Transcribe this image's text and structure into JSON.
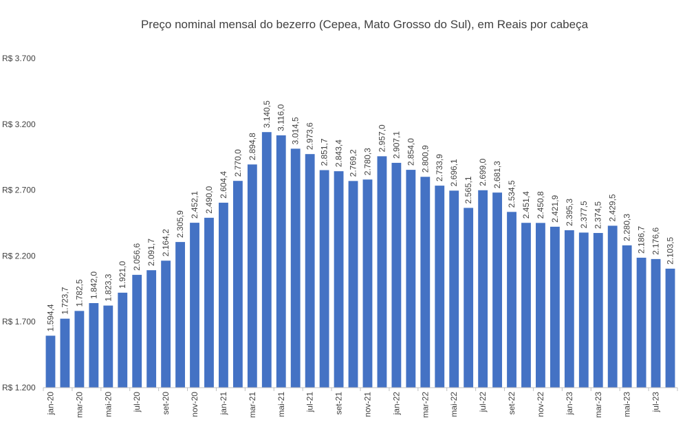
{
  "chart_data": {
    "type": "bar",
    "title": "Preço nominal mensal do bezerro (Cepea, Mato Grosso do Sul), em Reais por cabeça",
    "xlabel": "",
    "ylabel": "",
    "ylim": [
      1200,
      3700
    ],
    "yticks": [
      1200,
      1700,
      2200,
      2700,
      3200,
      3700
    ],
    "ytick_labels": [
      "R$ 1.200",
      "R$ 1.700",
      "R$ 2.200",
      "R$ 2.700",
      "R$ 3.200",
      "R$ 3.700"
    ],
    "grid": false,
    "legend": "none",
    "bar_color": "#4472C4",
    "categories": [
      "jan-20",
      "fev-20",
      "mar-20",
      "abr-20",
      "mai-20",
      "jun-20",
      "jul-20",
      "ago-20",
      "set-20",
      "out-20",
      "nov-20",
      "dez-20",
      "jan-21",
      "fev-21",
      "mar-21",
      "abr-21",
      "mai-21",
      "jun-21",
      "jul-21",
      "ago-21",
      "set-21",
      "out-21",
      "nov-21",
      "dez-21",
      "jan-22",
      "fev-22",
      "mar-22",
      "abr-22",
      "mai-22",
      "jun-22",
      "jul-22",
      "ago-22",
      "set-22",
      "out-22",
      "nov-22",
      "dez-22",
      "jan-23",
      "fev-23",
      "mar-23",
      "abr-23",
      "mai-23",
      "jun-23",
      "jul-23",
      "ago-23"
    ],
    "visible_tick_labels": [
      "jan-20",
      "",
      "mar-20",
      "",
      "mai-20",
      "",
      "jul-20",
      "",
      "set-20",
      "",
      "nov-20",
      "",
      "jan-21",
      "",
      "mar-21",
      "",
      "mai-21",
      "",
      "jul-21",
      "",
      "set-21",
      "",
      "nov-21",
      "",
      "jan-22",
      "",
      "mar-22",
      "",
      "mai-22",
      "",
      "jul-22",
      "",
      "set-22",
      "",
      "nov-22",
      "",
      "jan-23",
      "",
      "mar-23",
      "",
      "mai-23",
      "",
      "jul-23",
      ""
    ],
    "values": [
      1594.4,
      1723.7,
      1782.5,
      1842.0,
      1823.3,
      1921.0,
      2056.6,
      2091.7,
      2164.2,
      2305.9,
      2452.1,
      2490.0,
      2604.4,
      2770.0,
      2894.8,
      3140.5,
      3116.0,
      3014.5,
      2973.6,
      2851.7,
      2843.4,
      2769.2,
      2780.3,
      2957.0,
      2907.1,
      2854.0,
      2800.9,
      2733.9,
      2696.1,
      2565.1,
      2699.0,
      2681.3,
      2534.5,
      2451.4,
      2450.8,
      2421.9,
      2395.3,
      2377.5,
      2374.5,
      2429.5,
      2280.3,
      2186.7,
      2176.6,
      2103.5
    ],
    "data_labels": [
      "1.594,4",
      "1.723,7",
      "1.782,5",
      "1.842,0",
      "1.823,3",
      "1.921,0",
      "2.056,6",
      "2.091,7",
      "2.164,2",
      "2.305,9",
      "2.452,1",
      "2.490,0",
      "2.604,4",
      "2.770,0",
      "2.894,8",
      "3.140,5",
      "3.116,0",
      "3.014,5",
      "2.973,6",
      "2.851,7",
      "2.843,4",
      "2.769,2",
      "2.780,3",
      "2.957,0",
      "2.907,1",
      "2.854,0",
      "2.800,9",
      "2.733,9",
      "2.696,1",
      "2.565,1",
      "2.699,0",
      "2.681,3",
      "2.534,5",
      "2.451,4",
      "2.450,8",
      "2.421,9",
      "2.395,3",
      "2.377,5",
      "2.374,5",
      "2.429,5",
      "2.280,3",
      "2.186,7",
      "2.176,6",
      "2.103,5"
    ]
  }
}
